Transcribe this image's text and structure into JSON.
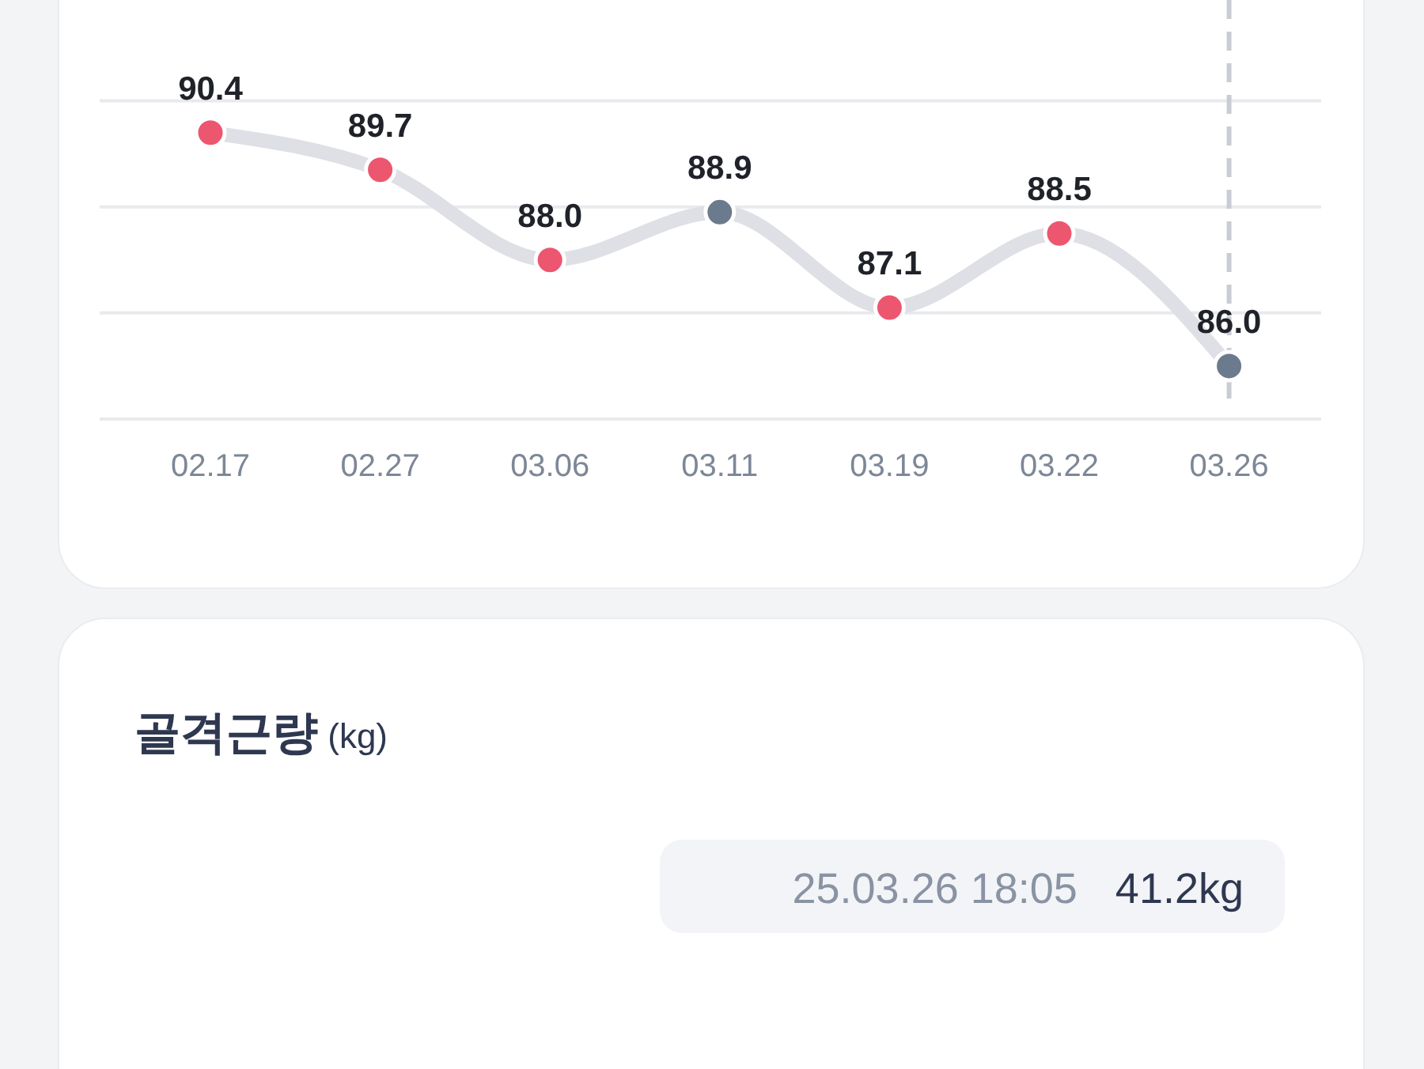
{
  "chart_data": [
    {
      "type": "line",
      "categories": [
        "02.17",
        "02.27",
        "03.06",
        "03.11",
        "03.19",
        "03.22",
        "03.26"
      ],
      "series": [
        {
          "color": "#dfe0e6",
          "colors": [
            "#ec566f",
            "#ec566f",
            "#ec566f",
            "#6c7a8d",
            "#ec566f",
            "#ec566f",
            "#6c7a8d"
          ],
          "values": [
            90.4,
            89.7,
            88.0,
            88.9,
            87.1,
            88.5,
            86.0
          ],
          "value_labels": [
            "90.4",
            "89.7",
            "88.0",
            "88.9",
            "87.1",
            "88.5",
            "86.0"
          ]
        }
      ],
      "ylim": [
        85,
        92.9
      ],
      "yticks": [
        {
          "value": 85,
          "label": null
        },
        {
          "value": 87,
          "label": null
        },
        {
          "value": 89,
          "label": null
        },
        {
          "value": 91,
          "label": null
        }
      ],
      "grid": "y",
      "tick_labels": "x",
      "marker": "circle",
      "ref_lines": [
        {
          "axis": "x",
          "value": "03.26",
          "color": "#c9ccd2",
          "line_style": "dashed"
        }
      ]
    },
    {
      "type": "other",
      "title": "**골격근량** (kg)",
      "annotations": [
        "25.03.26 18:05",
        "41.2kg"
      ]
    }
  ]
}
